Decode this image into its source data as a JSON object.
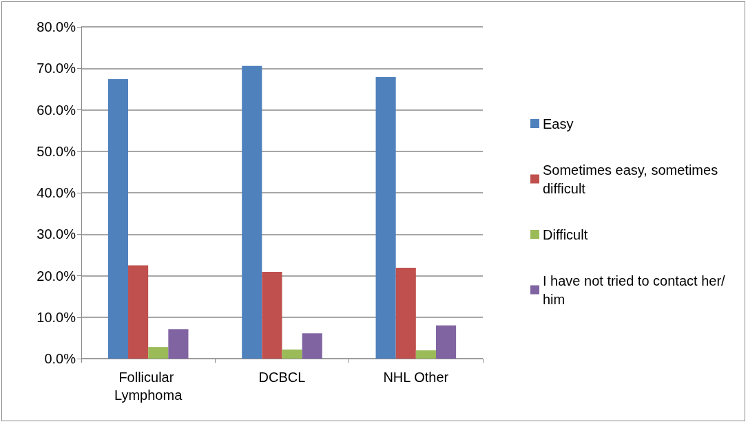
{
  "chart_data": {
    "type": "bar",
    "categories": [
      "Follicular Lymphoma",
      "DCBCL",
      "NHL Other"
    ],
    "series": [
      {
        "name": "Easy",
        "color": "#4f81bd",
        "values": [
          67.4,
          70.6,
          67.9
        ]
      },
      {
        "name": "Sometimes easy, sometimes difficult",
        "color": "#c0504d",
        "values": [
          22.5,
          20.9,
          21.9
        ]
      },
      {
        "name": "Difficult",
        "color": "#9bbb59",
        "values": [
          2.8,
          2.2,
          2.0
        ]
      },
      {
        "name": "I have not tried to contact her/him",
        "color": "#8064a2",
        "values": [
          7.1,
          6.1,
          8.0
        ]
      }
    ],
    "ylim": [
      0,
      80
    ],
    "yticks": [
      {
        "value": 0,
        "label": "0.0%"
      },
      {
        "value": 10,
        "label": "10.0%"
      },
      {
        "value": 20,
        "label": "20.0%"
      },
      {
        "value": 30,
        "label": "30.0%"
      },
      {
        "value": 40,
        "label": "40.0%"
      },
      {
        "value": 50,
        "label": "50.0%"
      },
      {
        "value": 60,
        "label": "60.0%"
      },
      {
        "value": 70,
        "label": "70.0%"
      },
      {
        "value": 80,
        "label": "80.0%"
      }
    ],
    "grid": "y",
    "legend": "right"
  }
}
